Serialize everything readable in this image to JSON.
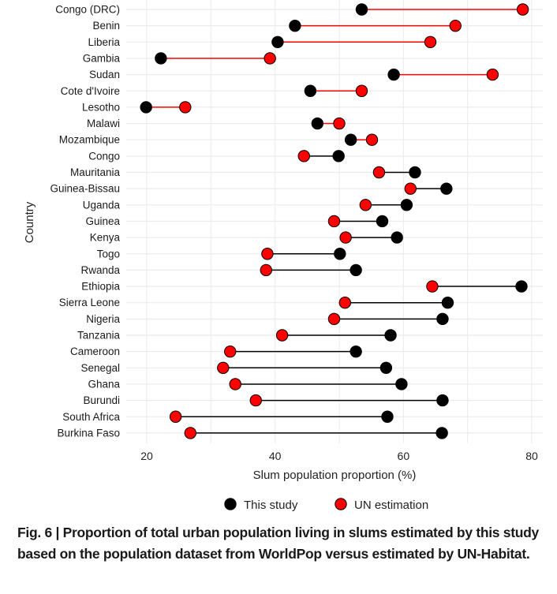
{
  "chart_data": {
    "type": "dumbbell",
    "xlabel": "Slum population proportion (%)",
    "ylabel": "Country",
    "xlim": [
      15,
      81
    ],
    "xticks": [
      20,
      40,
      60,
      80
    ],
    "grid": true,
    "legend_position": "bottom",
    "series": [
      {
        "name": "This study",
        "color": "#000000"
      },
      {
        "name": "UN estimation",
        "color": "#ff0000"
      }
    ],
    "rows": [
      {
        "country": "Congo (DRC)",
        "this_study": 53.5,
        "un_estimation": 78.6
      },
      {
        "country": "Benin",
        "this_study": 43.1,
        "un_estimation": 68.1
      },
      {
        "country": "Liberia",
        "this_study": 40.4,
        "un_estimation": 64.2
      },
      {
        "country": "Gambia",
        "this_study": 22.2,
        "un_estimation": 39.2
      },
      {
        "country": "Sudan",
        "this_study": 58.5,
        "un_estimation": 73.9
      },
      {
        "country": "Cote d'Ivoire",
        "this_study": 45.5,
        "un_estimation": 53.5
      },
      {
        "country": "Lesotho",
        "this_study": 19.9,
        "un_estimation": 26.0
      },
      {
        "country": "Malawi",
        "this_study": 46.6,
        "un_estimation": 50.0
      },
      {
        "country": "Mozambique",
        "this_study": 51.8,
        "un_estimation": 55.1
      },
      {
        "country": "Congo",
        "this_study": 49.9,
        "un_estimation": 44.5
      },
      {
        "country": "Mauritania",
        "this_study": 61.8,
        "un_estimation": 56.2
      },
      {
        "country": "Guinea-Bissau",
        "this_study": 66.7,
        "un_estimation": 61.1
      },
      {
        "country": "Uganda",
        "this_study": 60.5,
        "un_estimation": 54.1
      },
      {
        "country": "Guinea",
        "this_study": 56.7,
        "un_estimation": 49.2
      },
      {
        "country": "Kenya",
        "this_study": 59.0,
        "un_estimation": 51.0
      },
      {
        "country": "Togo",
        "this_study": 50.1,
        "un_estimation": 38.8
      },
      {
        "country": "Rwanda",
        "this_study": 52.6,
        "un_estimation": 38.6
      },
      {
        "country": "Ethiopia",
        "this_study": 78.4,
        "un_estimation": 64.5
      },
      {
        "country": "Sierra Leone",
        "this_study": 66.9,
        "un_estimation": 50.9
      },
      {
        "country": "Nigeria",
        "this_study": 66.1,
        "un_estimation": 49.2
      },
      {
        "country": "Tanzania",
        "this_study": 58.0,
        "un_estimation": 41.1
      },
      {
        "country": "Cameroon",
        "this_study": 52.6,
        "un_estimation": 33.0
      },
      {
        "country": "Senegal",
        "this_study": 57.3,
        "un_estimation": 31.9
      },
      {
        "country": "Ghana",
        "this_study": 59.7,
        "un_estimation": 33.8
      },
      {
        "country": "Burundi",
        "this_study": 66.1,
        "un_estimation": 37.0
      },
      {
        "country": "South Africa",
        "this_study": 57.5,
        "un_estimation": 24.5
      },
      {
        "country": "Burkina Faso",
        "this_study": 66.0,
        "un_estimation": 26.8
      }
    ],
    "segment_colors": {
      "un_higher": "#ff0000",
      "study_higher": "#000000"
    }
  },
  "caption": {
    "label": "Fig. 6 | ",
    "text": "Proportion of total urban population living in slums estimated by this study based on the population dataset from WorldPop versus estimated by UN-Habitat."
  }
}
